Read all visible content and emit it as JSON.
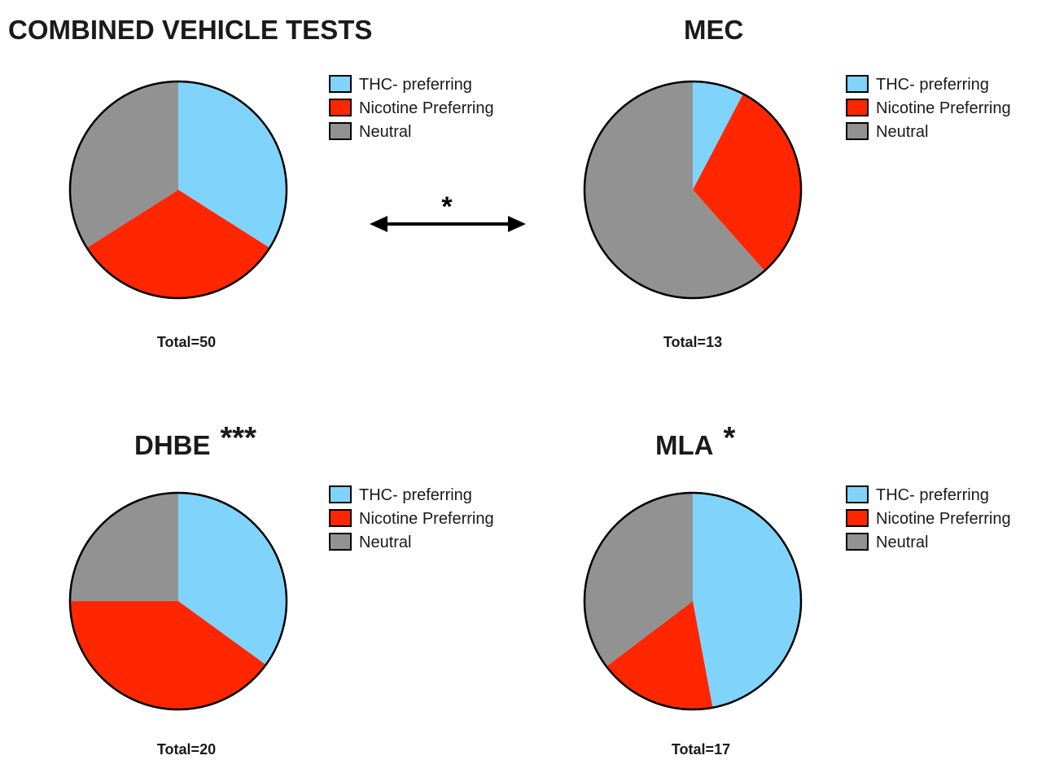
{
  "colors": {
    "thc": "#80d4fb",
    "nicotine": "#ff2600",
    "neutral": "#929292",
    "outline": "#000000"
  },
  "legend": [
    "THC- preferring",
    "Nicotine Preferring",
    "Neutral"
  ],
  "comparison_marker": "*",
  "chart_data": [
    {
      "type": "pie",
      "title": "COMBINED VEHICLE TESTS",
      "title_suffix": "",
      "total_label": "Total=50",
      "slices": [
        {
          "label": "THC- preferring",
          "value": 17
        },
        {
          "label": "Nicotine Preferring",
          "value": 16
        },
        {
          "label": "Neutral",
          "value": 17
        }
      ],
      "start_angle_deg": 0,
      "direction": "clockwise",
      "legend_position": "right"
    },
    {
      "type": "pie",
      "title": "MEC",
      "title_suffix": "",
      "total_label": "Total=13",
      "slices": [
        {
          "label": "THC- preferring",
          "value": 1
        },
        {
          "label": "Nicotine Preferring",
          "value": 4
        },
        {
          "label": "Neutral",
          "value": 8
        }
      ],
      "start_angle_deg": 0,
      "direction": "clockwise",
      "legend_position": "right"
    },
    {
      "type": "pie",
      "title": "DHBE",
      "title_suffix": "***",
      "total_label": "Total=20",
      "slices": [
        {
          "label": "THC- preferring",
          "value": 7
        },
        {
          "label": "Nicotine Preferring",
          "value": 8
        },
        {
          "label": "Neutral",
          "value": 5
        }
      ],
      "start_angle_deg": 0,
      "direction": "clockwise",
      "legend_position": "right"
    },
    {
      "type": "pie",
      "title": "MLA",
      "title_suffix": "*",
      "total_label": "Total=17",
      "slices": [
        {
          "label": "THC- preferring",
          "value": 8
        },
        {
          "label": "Nicotine Preferring",
          "value": 3
        },
        {
          "label": "Neutral",
          "value": 6
        }
      ],
      "start_angle_deg": 0,
      "direction": "clockwise",
      "legend_position": "right"
    }
  ]
}
